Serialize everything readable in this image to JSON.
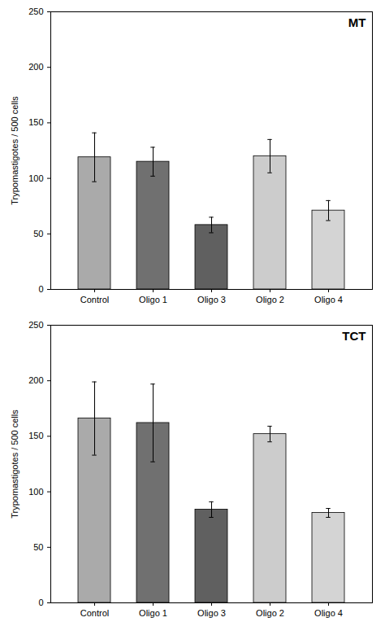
{
  "chart_data": [
    {
      "type": "bar",
      "annotation": "MT",
      "categories": [
        "Control",
        "Oligo 1",
        "Oligo 3",
        "Oligo 2",
        "Oligo 4"
      ],
      "values": [
        119,
        115,
        58,
        120,
        71
      ],
      "errors": [
        22,
        13,
        7,
        15,
        9
      ],
      "colors": [
        "#aaaaaa",
        "#707070",
        "#606060",
        "#cccccc",
        "#d4d4d4"
      ],
      "y_label": "Trypomastigotes / 500 cells",
      "ylim": [
        0,
        250
      ],
      "yticks": [
        0,
        50,
        100,
        150,
        200,
        250
      ],
      "grid": false
    },
    {
      "type": "bar",
      "annotation": "TCT",
      "categories": [
        "Control",
        "Oligo 1",
        "Oligo 3",
        "Oligo 2",
        "Oligo 4"
      ],
      "values": [
        166,
        162,
        84,
        152,
        81
      ],
      "errors": [
        33,
        35,
        7,
        7,
        4
      ],
      "colors": [
        "#aaaaaa",
        "#707070",
        "#606060",
        "#cccccc",
        "#d4d4d4"
      ],
      "y_label": "Trypomastigotes / 500 cells",
      "ylim": [
        0,
        250
      ],
      "yticks": [
        0,
        50,
        100,
        150,
        200,
        250
      ],
      "grid": false
    }
  ]
}
